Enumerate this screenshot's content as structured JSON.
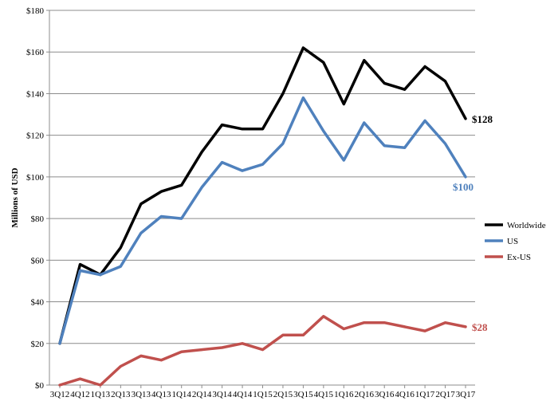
{
  "chart_data": {
    "type": "line",
    "title": "",
    "xlabel": "",
    "ylabel": "Millions of USD",
    "ylim": [
      0,
      180
    ],
    "yticks": [
      0,
      20,
      40,
      60,
      80,
      100,
      120,
      140,
      160,
      180
    ],
    "ytick_labels": [
      "$0",
      "$20",
      "$40",
      "$60",
      "$80",
      "$100",
      "$120",
      "$140",
      "$160",
      "$180"
    ],
    "grid": "horizontal",
    "legend_position": "right",
    "categories": [
      "3Q12",
      "4Q12",
      "1Q13",
      "2Q13",
      "3Q13",
      "4Q13",
      "1Q14",
      "2Q14",
      "3Q14",
      "4Q14",
      "1Q15",
      "2Q15",
      "3Q15",
      "4Q15",
      "1Q16",
      "2Q16",
      "3Q16",
      "4Q16",
      "1Q17",
      "2Q17",
      "3Q17"
    ],
    "series": [
      {
        "name": "Worldwide",
        "color": "#000000",
        "values": [
          20,
          58,
          53,
          66,
          87,
          93,
          96,
          112,
          125,
          123,
          123,
          140,
          162,
          155,
          135,
          156,
          145,
          142,
          153,
          146,
          128
        ],
        "end_label": "$128"
      },
      {
        "name": "US",
        "color": "#4f81bd",
        "values": [
          20,
          55,
          53,
          57,
          73,
          81,
          80,
          95,
          107,
          103,
          106,
          116,
          138,
          122,
          108,
          126,
          115,
          114,
          127,
          116,
          100
        ],
        "end_label": "$100"
      },
      {
        "name": "Ex-US",
        "color": "#c0504d",
        "values": [
          0,
          3,
          0,
          9,
          14,
          12,
          16,
          17,
          18,
          20,
          17,
          24,
          24,
          33,
          27,
          30,
          30,
          28,
          26,
          30,
          28
        ],
        "end_label": "$28"
      }
    ]
  }
}
